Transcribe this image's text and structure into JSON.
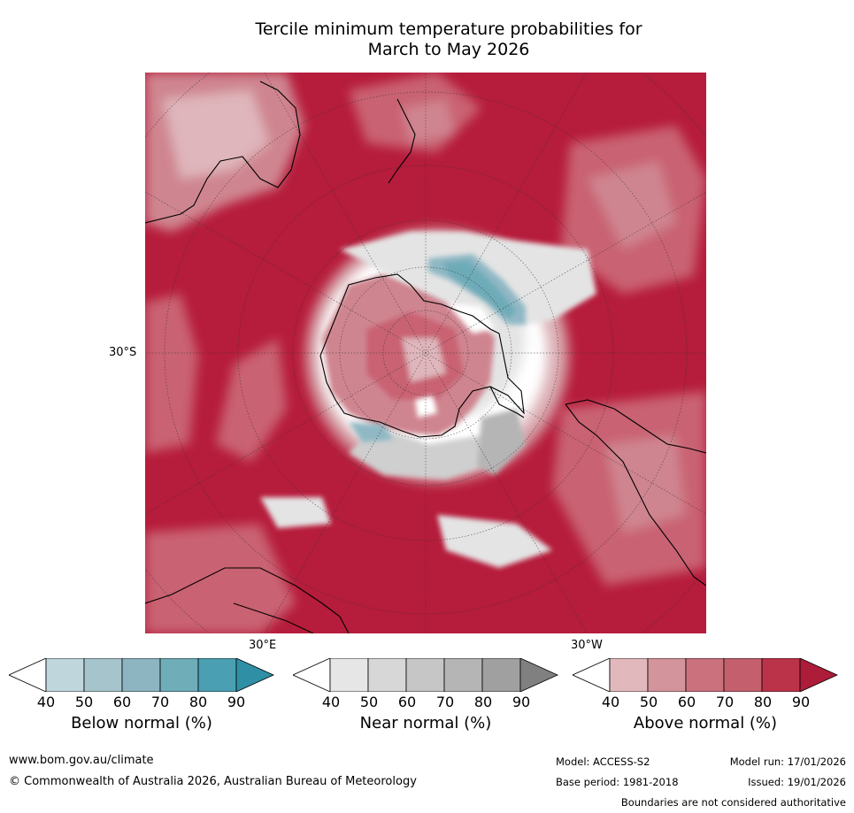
{
  "title": {
    "line1": "Tercile minimum temperature probabilities for",
    "line2": "March to May 2026"
  },
  "map": {
    "region": "Southern hemisphere polar stereographic",
    "dominant_category": "Above normal",
    "graticule_labels": {
      "lat": "30°S",
      "lon_east": "30°E",
      "lon_west": "30°W"
    },
    "boundaries_color": "#000000",
    "colors": {
      "above_90": "#b61c3b",
      "above_80": "#c33a52",
      "above_70": "#c96272",
      "above_60": "#cf8590",
      "above_50": "#dfb6bb",
      "white": "#ffffff",
      "near_50": "#e4e4e4",
      "near_60": "#cfcfcf",
      "near_70": "#b5b5b5",
      "below_50": "#a9c9d1",
      "below_60": "#8fb8c4",
      "below_70": "#6eabb8",
      "below_80": "#4aa0b2"
    }
  },
  "colorbars": [
    {
      "title": "Below normal (%)",
      "ticks": [
        "40",
        "50",
        "60",
        "70",
        "80",
        "90"
      ],
      "colors": [
        "#bfd6dc",
        "#a6c4cc",
        "#8db5c1",
        "#6faeb9",
        "#4aa0b2",
        "#2f8fa5"
      ]
    },
    {
      "title": "Near normal (%)",
      "ticks": [
        "40",
        "50",
        "60",
        "70",
        "80",
        "90"
      ],
      "colors": [
        "#e6e6e6",
        "#d7d7d7",
        "#c6c6c6",
        "#b5b5b5",
        "#a0a0a0",
        "#808080"
      ]
    },
    {
      "title": "Above normal (%)",
      "ticks": [
        "40",
        "50",
        "60",
        "70",
        "80",
        "90"
      ],
      "colors": [
        "#e1b9bd",
        "#d4949c",
        "#cb717d",
        "#c4606d",
        "#bb3349",
        "#ad1c38"
      ]
    }
  ],
  "footer": {
    "website": "www.bom.gov.au/climate",
    "copyright": "© Commonwealth of Australia 2026, Australian Bureau of Meteorology",
    "model": "Model: ACCESS-S2",
    "model_run": "Model run: 17/01/2026",
    "base_period": "Base period: 1981-2018",
    "issued": "Issued: 19/01/2026",
    "disclaimer": "Boundaries are not considered authoritative"
  }
}
